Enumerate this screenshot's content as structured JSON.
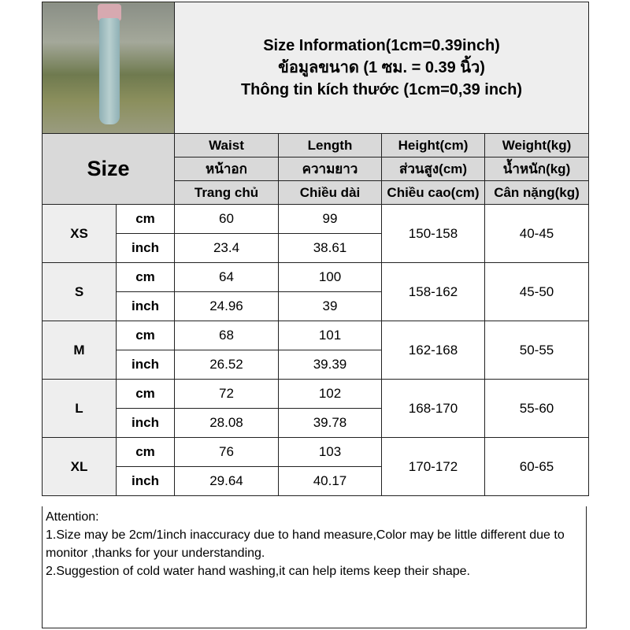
{
  "title": {
    "line1": "Size Information(1cm=0.39inch)",
    "line2": "ข้อมูลขนาด (1 ซม. = 0.39 นิ้ว)",
    "line3": "Thông tin kích thước (1cm=0,39 inch)"
  },
  "header": {
    "size_label": "Size",
    "columns": [
      {
        "en": "Waist",
        "th": "หน้าอก",
        "vi": "Trang chủ"
      },
      {
        "en": "Length",
        "th": "ความยาว",
        "vi": "Chiều dài"
      },
      {
        "en": "Height(cm)",
        "th": "ส่วนสูง(cm)",
        "vi": "Chiều cao(cm)"
      },
      {
        "en": "Weight(kg)",
        "th": "น้ำหนัก(kg)",
        "vi": "Cân nặng(kg)"
      }
    ]
  },
  "units": {
    "cm": "cm",
    "inch": "inch"
  },
  "rows": [
    {
      "size": "XS",
      "waist_cm": "60",
      "length_cm": "99",
      "waist_in": "23.4",
      "length_in": "38.61",
      "height": "150-158",
      "weight": "40-45"
    },
    {
      "size": "S",
      "waist_cm": "64",
      "length_cm": "100",
      "waist_in": "24.96",
      "length_in": "39",
      "height": "158-162",
      "weight": "45-50"
    },
    {
      "size": "M",
      "waist_cm": "68",
      "length_cm": "101",
      "waist_in": "26.52",
      "length_in": "39.39",
      "height": "162-168",
      "weight": "50-55"
    },
    {
      "size": "L",
      "waist_cm": "72",
      "length_cm": "102",
      "waist_in": "28.08",
      "length_in": "39.78",
      "height": "168-170",
      "weight": "55-60"
    },
    {
      "size": "XL",
      "waist_cm": "76",
      "length_cm": "103",
      "waist_in": "29.64",
      "length_in": "40.17",
      "height": "170-172",
      "weight": "60-65"
    }
  ],
  "attention": {
    "heading": "Attention:",
    "line1": "1.Size may be 2cm/1inch inaccuracy due to hand measure,Color may be little different due to monitor ,thanks for your understanding.",
    "line2": "2.Suggestion of cold water hand washing,it can help items keep their shape."
  }
}
